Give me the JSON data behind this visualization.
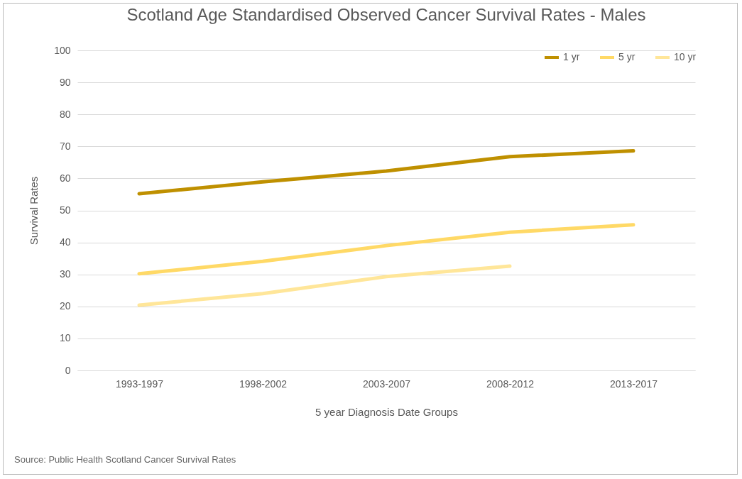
{
  "chart_data": {
    "type": "line",
    "title": "Scotland Age Standardised Observed Cancer Survival Rates - Males",
    "xlabel": "5 year Diagnosis Date Groups",
    "ylabel": "Survival Rates",
    "categories": [
      "1993-1997",
      "1998-2002",
      "2003-2007",
      "2008-2012",
      "2013-2017"
    ],
    "series": [
      {
        "name": "1 yr",
        "color": "#bf9000",
        "values": [
          55.2,
          58.9,
          62.3,
          66.8,
          68.6
        ]
      },
      {
        "name": "5 yr",
        "color": "#ffd966",
        "values": [
          30.2,
          34.1,
          39.0,
          43.2,
          45.5
        ]
      },
      {
        "name": "10 yr",
        "color": "#ffe699",
        "values": [
          20.4,
          24.0,
          29.3,
          32.6,
          null
        ]
      }
    ],
    "ylim": [
      0,
      100
    ],
    "yticks": [
      0,
      10,
      20,
      30,
      40,
      50,
      60,
      70,
      80,
      90,
      100
    ],
    "grid": "y",
    "legend": "top right",
    "line_style": "solid",
    "marker": "none",
    "annotations": [
      "Source: Public Health Scotland Cancer Survival Rates"
    ]
  }
}
